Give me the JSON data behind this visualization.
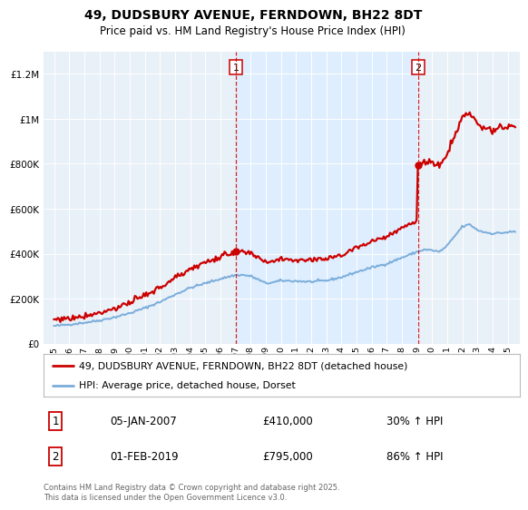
{
  "title": "49, DUDSBURY AVENUE, FERNDOWN, BH22 8DT",
  "subtitle": "Price paid vs. HM Land Registry's House Price Index (HPI)",
  "hpi_label": "HPI: Average price, detached house, Dorset",
  "property_label": "49, DUDSBURY AVENUE, FERNDOWN, BH22 8DT (detached house)",
  "sale1_date": "05-JAN-2007",
  "sale1_price": 410000,
  "sale1_pct": "30% ↑ HPI",
  "sale2_date": "01-FEB-2019",
  "sale2_price": 795000,
  "sale2_pct": "86% ↑ HPI",
  "sale1_x": 2007.03,
  "sale2_x": 2019.08,
  "property_color": "#cc0000",
  "hpi_color": "#7aaddb",
  "shade_color": "#ddeeff",
  "background_color": "#e8f0f8",
  "footnote": "Contains HM Land Registry data © Crown copyright and database right 2025.\nThis data is licensed under the Open Government Licence v3.0.",
  "ylim": [
    0,
    1300000
  ],
  "xlim_start": 1994.3,
  "xlim_end": 2025.8
}
